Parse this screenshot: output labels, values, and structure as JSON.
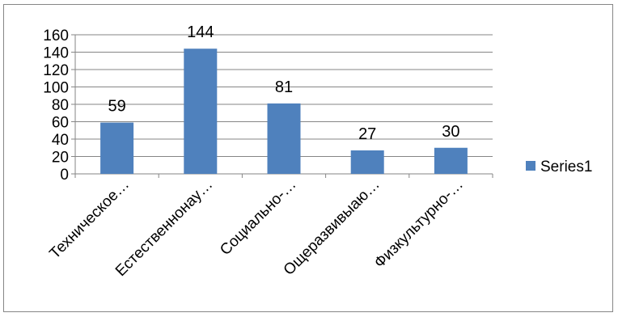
{
  "chart_data": {
    "type": "bar",
    "categories": [
      "Техническое…",
      "Естественнонау…",
      "Социально-…",
      "Ощеразвивыаю…",
      "Физкультурно-…"
    ],
    "series": [
      {
        "name": "Series1",
        "values": [
          59,
          144,
          81,
          27,
          30
        ],
        "color": "#4f81bd"
      }
    ],
    "ylim": [
      0,
      160
    ],
    "yticks": [
      0,
      20,
      40,
      60,
      80,
      100,
      120,
      140,
      160
    ],
    "grid": true,
    "data_labels": true,
    "legend_position": "right"
  }
}
